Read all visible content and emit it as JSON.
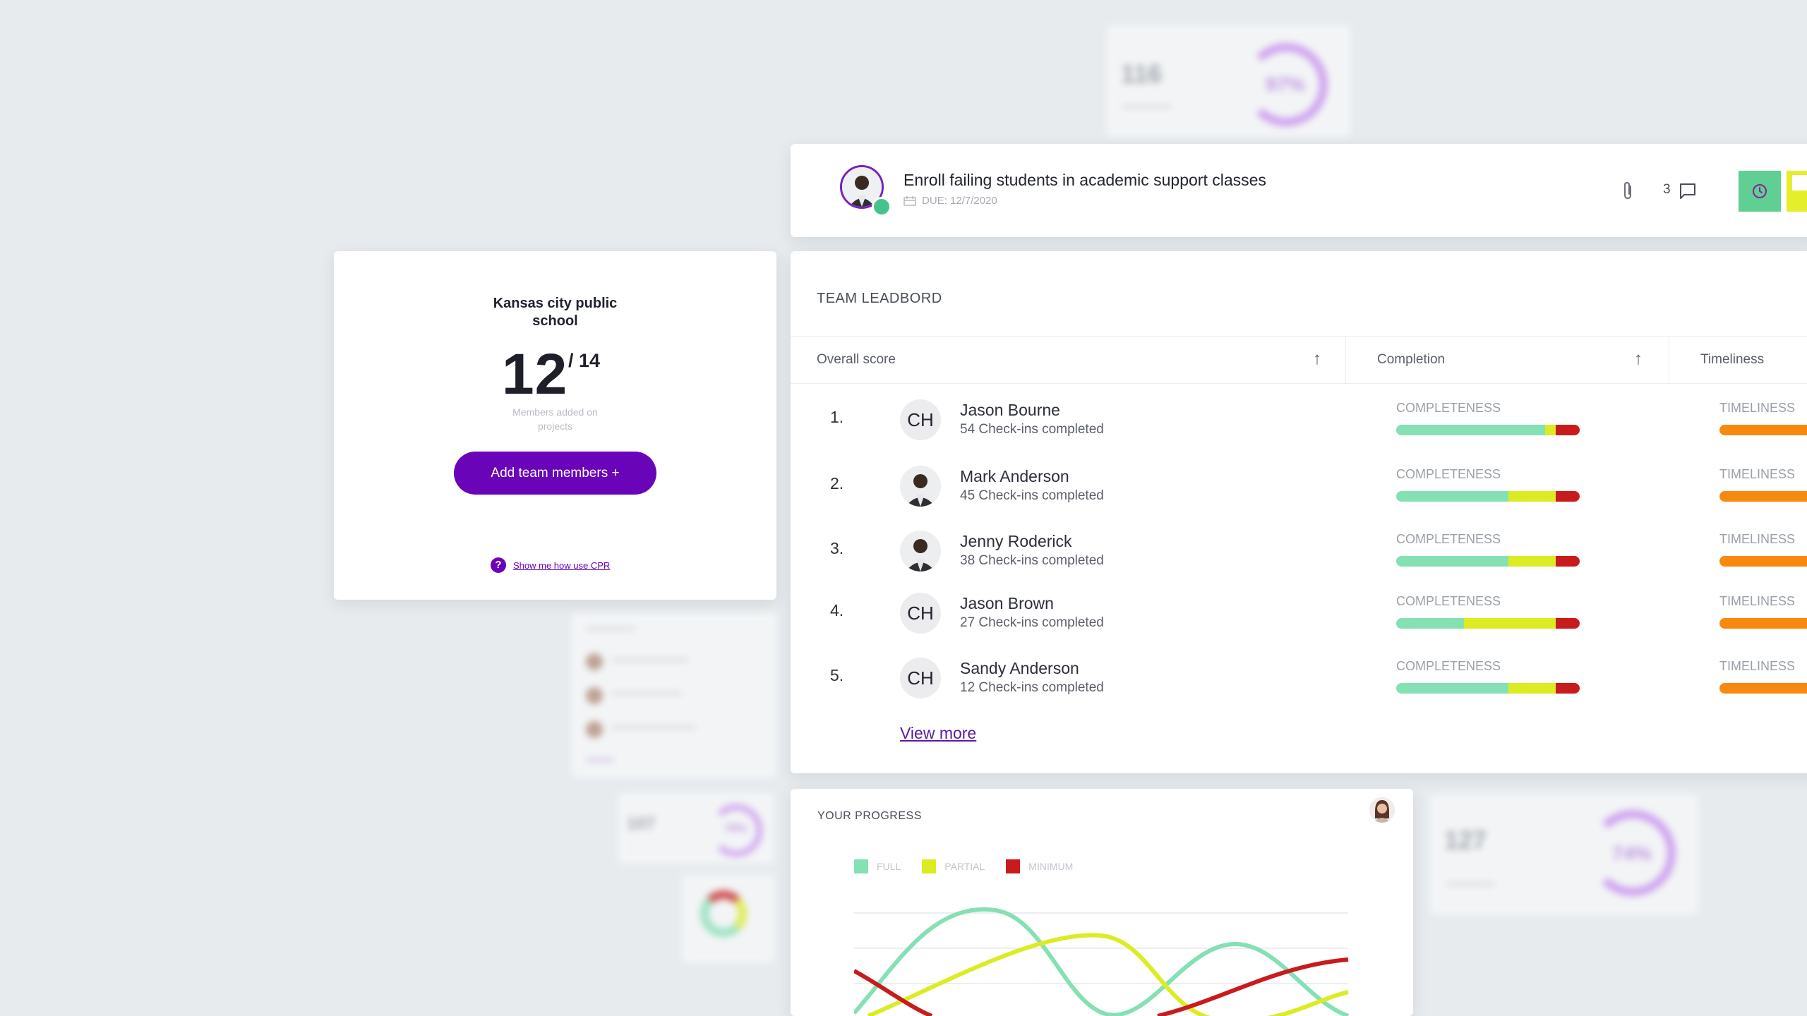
{
  "school_card": {
    "name": "Kansas city public school",
    "count": "12",
    "total": "/ 14",
    "caption": "Members added on projects",
    "add_button": "Add team members +",
    "help_icon": "?",
    "help_link": "Show me how use CPR"
  },
  "task": {
    "title": "Enroll failing students in academic support classes",
    "due": "DUE: 12/7/2020",
    "comments_count": "3",
    "icons": [
      "paperclip-icon",
      "comment-icon",
      "clock-icon",
      "calendar-icon"
    ]
  },
  "leaderboard": {
    "title": "TEAM LEADBORD",
    "columns": [
      "Overall score",
      "Completion",
      "Timeliness"
    ],
    "completeness_label": "COMPLETENESS",
    "timeliness_label": "TIMELINESS",
    "checkins_suffix": "Check-ins  completed",
    "rows": [
      {
        "rank": "1.",
        "name": "Jason Bourne",
        "checkins": "54",
        "avatar": "CH",
        "full": 0.81,
        "partial": 0.06,
        "min": 0.13
      },
      {
        "rank": "2.",
        "name": "Mark Anderson",
        "checkins": "45",
        "avatar": "photo",
        "full": 0.61,
        "partial": 0.26,
        "min": 0.13
      },
      {
        "rank": "3.",
        "name": "Jenny Roderick",
        "checkins": "38",
        "avatar": "photo",
        "full": 0.61,
        "partial": 0.26,
        "min": 0.13
      },
      {
        "rank": "4.",
        "name": "Jason Brown",
        "checkins": "27",
        "avatar": "CH",
        "full": 0.37,
        "partial": 0.5,
        "min": 0.13
      },
      {
        "rank": "5.",
        "name": "Sandy Anderson",
        "checkins": "12",
        "avatar": "CH",
        "full": 0.61,
        "partial": 0.26,
        "min": 0.13
      }
    ],
    "view_more": "View more"
  },
  "progress": {
    "title": "YOUR PROGRESS",
    "legend": [
      {
        "label": "FULL",
        "color": "#85e0b4"
      },
      {
        "label": "PARTIAL",
        "color": "#dcec22"
      },
      {
        "label": "MINIMUM",
        "color": "#c81c1c"
      }
    ]
  },
  "ghosts": {
    "top": {
      "num": "116",
      "pct": "97%"
    },
    "mid": {
      "num": "107",
      "pct": "78%"
    },
    "right": {
      "num": "127",
      "pct": "74%"
    }
  },
  "colors": {
    "accent": "#6a04b8",
    "full": "#85e0b4",
    "partial": "#dcec22",
    "minimum": "#c81c1c",
    "timeliness": "#f7890e"
  }
}
